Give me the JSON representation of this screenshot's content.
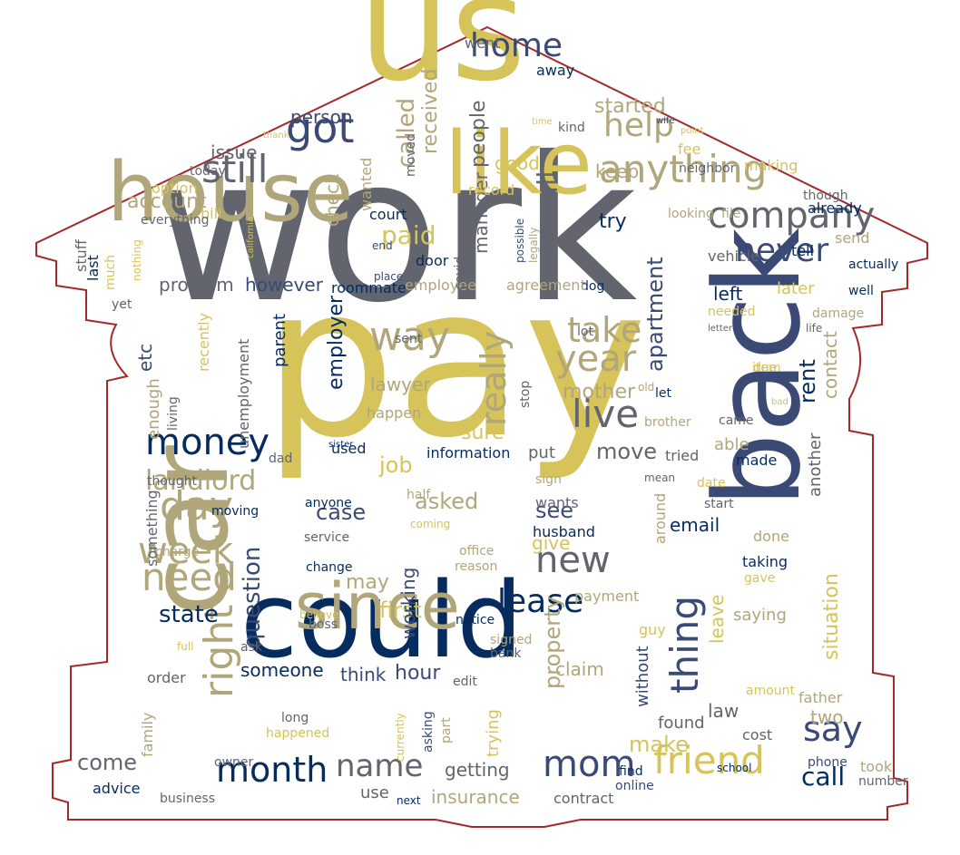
{
  "palette": {
    "gray": "#62646e",
    "gold": "#d6c35a",
    "tan": "#b0a67a",
    "navy": "#052b5f",
    "slate": "#3a4a74",
    "yellow": "#f0df55",
    "outline": "#a42a2a"
  },
  "shape": "house-outline",
  "words": [
    "work",
    "pay",
    "us",
    "could",
    "back",
    "house",
    "like",
    "car",
    "since",
    "month",
    "friend",
    "mom",
    "say",
    "company",
    "anything",
    "still",
    "got",
    "home",
    "money",
    "need",
    "day",
    "week",
    "right",
    "live",
    "take",
    "year",
    "thing",
    "lease",
    "new",
    "way",
    "really",
    "name",
    "never",
    "help",
    "call",
    "call",
    "state",
    "landlord",
    "question",
    "mother",
    "apartment",
    "paid",
    "people",
    "called",
    "received",
    "first",
    "getting",
    "insurance",
    "make",
    "come",
    "someone",
    "think",
    "hour",
    "job",
    "asked",
    "see",
    "move",
    "sure",
    "employer",
    "lawyer",
    "claim",
    "found",
    "two",
    "left",
    "rent",
    "contact",
    "situation",
    "email",
    "give",
    "working",
    "put",
    "information",
    "used",
    "case",
    "may",
    "anyone",
    "service",
    "change",
    "office",
    "reason",
    "notice",
    "boss",
    "believe",
    "ask",
    "full",
    "order",
    "family",
    "long",
    "happened",
    "owner",
    "advice",
    "business",
    "next",
    "use",
    "contract",
    "online",
    "find",
    "school",
    "took",
    "number",
    "phone",
    "cost",
    "father",
    "amount",
    "guy",
    "without",
    "trying",
    "currently",
    "asking",
    "part",
    "edit",
    "bank",
    "signed",
    "property",
    "payment",
    "husband",
    "wants",
    "half",
    "sign",
    "coming",
    "saying",
    "done",
    "taking",
    "gave",
    "start",
    "date",
    "mean",
    "made",
    "tried",
    "able",
    "came",
    "brother",
    "let",
    "old",
    "bad",
    "item",
    "letter",
    "life",
    "needed",
    "damage",
    "later",
    "well",
    "actually",
    "send",
    "tell",
    "vehicle",
    "dog",
    "agreement",
    "employee",
    "roommate",
    "place",
    "end",
    "door",
    "wanted",
    "legally",
    "possible",
    "manager",
    "covid",
    "court",
    "already",
    "though",
    "file",
    "looking",
    "neighbor",
    "making",
    "fee",
    "keep",
    "started",
    "point",
    "wife",
    "time",
    "kind",
    "away",
    "went",
    "moved",
    "record",
    "good",
    "today",
    "option",
    "bill",
    "everything",
    "california",
    "stuff",
    "last",
    "much",
    "nothing",
    "yet",
    "etc",
    "parent",
    "recently",
    "problem",
    "however",
    "account",
    "issue",
    "person",
    "check",
    "thank",
    "unemployment",
    "living",
    "thought",
    "enough",
    "dad",
    "sister",
    "happen",
    "sent",
    "lot",
    "stop",
    "something",
    "charge",
    "moving",
    "try",
    "around",
    "leave",
    "another",
    "law",
    "due",
    "item"
  ]
}
